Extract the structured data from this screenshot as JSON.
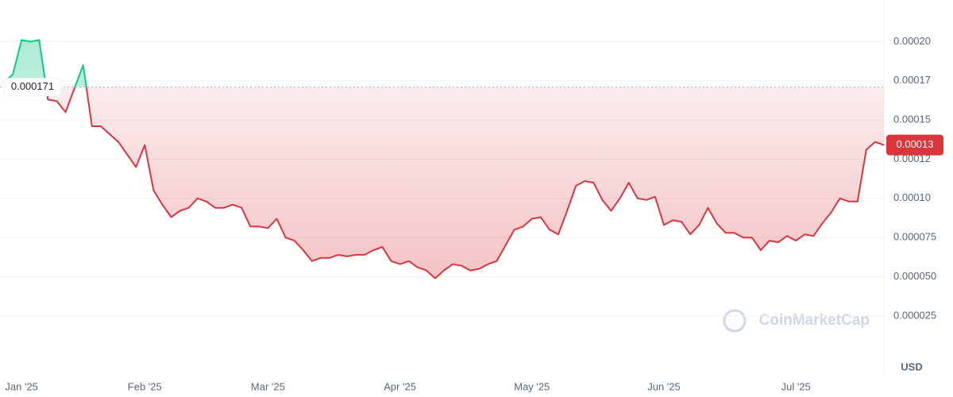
{
  "chart_data": {
    "type": "line",
    "currency": "USD",
    "watermark": "CoinMarketCap",
    "baseline": 0.000171,
    "last_price_label": "0.00013",
    "ylim": [
      -9e-06,
      0.000224
    ],
    "yticks": [
      2.5e-05,
      {
        "value": 5e-05,
        "label": "0.000050"
      },
      7.5e-05,
      {
        "value": 0.0001,
        "label": "0.00010"
      },
      {
        "value": 0.000125,
        "label": "0.00012"
      },
      0.00015,
      {
        "value": 0.000175,
        "label": "0.00017"
      },
      {
        "value": 0.0002,
        "label": "0.00020"
      }
    ],
    "grid": true,
    "up_color": "#16c784",
    "down_color": "#d9363e",
    "categories": [
      null,
      null,
      "Jan '25",
      null,
      null,
      null,
      null,
      null,
      null,
      null,
      null,
      null,
      null,
      null,
      null,
      null,
      "Feb '25",
      null,
      null,
      null,
      null,
      null,
      null,
      null,
      null,
      null,
      null,
      null,
      null,
      null,
      "Mar '25",
      null,
      null,
      null,
      null,
      null,
      null,
      null,
      null,
      null,
      null,
      null,
      null,
      null,
      null,
      "Apr '25",
      null,
      null,
      null,
      null,
      null,
      null,
      null,
      null,
      null,
      null,
      null,
      null,
      null,
      null,
      "May '25",
      null,
      null,
      null,
      null,
      null,
      null,
      null,
      null,
      null,
      null,
      null,
      null,
      null,
      null,
      "Jun '25",
      null,
      null,
      null,
      null,
      null,
      null,
      null,
      null,
      null,
      null,
      null,
      null,
      null,
      null,
      "Jul '25",
      null,
      null,
      null,
      null,
      null,
      null,
      null,
      null,
      null,
      null
    ],
    "values": [
      0.000174,
      0.000179,
      0.000201,
      0.0002,
      0.000201,
      0.000163,
      0.000162,
      0.000155,
      0.00017,
      0.000185,
      0.000146,
      0.000146,
      0.000141,
      0.000136,
      0.000128,
      0.00012,
      0.000134,
      0.000105,
      9.6e-05,
      8.8e-05,
      9.2e-05,
      9.4e-05,
      0.0001,
      9.8e-05,
      9.4e-05,
      9.4e-05,
      9.6e-05,
      9.4e-05,
      8.2e-05,
      8.2e-05,
      8.1e-05,
      8.7e-05,
      7.5e-05,
      7.3e-05,
      6.7e-05,
      6e-05,
      6.2e-05,
      6.2e-05,
      6.4e-05,
      6.3e-05,
      6.4e-05,
      6.4e-05,
      6.7e-05,
      6.9e-05,
      6e-05,
      5.8e-05,
      6e-05,
      5.6e-05,
      5.4e-05,
      4.9e-05,
      5.4e-05,
      5.8e-05,
      5.7e-05,
      5.4e-05,
      5.5e-05,
      5.8e-05,
      6e-05,
      7e-05,
      8e-05,
      8.2e-05,
      8.7e-05,
      8.8e-05,
      8e-05,
      7.7e-05,
      9.2e-05,
      0.000108,
      0.000111,
      0.00011,
      9.9e-05,
      9.2e-05,
      0.0001,
      0.00011,
      0.0001,
      9.9e-05,
      0.000101,
      8.3e-05,
      8.6e-05,
      8.5e-05,
      7.7e-05,
      8.3e-05,
      9.4e-05,
      8.4e-05,
      7.8e-05,
      7.8e-05,
      7.5e-05,
      7.5e-05,
      6.7e-05,
      7.3e-05,
      7.2e-05,
      7.6e-05,
      7.3e-05,
      7.7e-05,
      7.6e-05,
      8.4e-05,
      9.1e-05,
      0.0001,
      9.8e-05,
      9.8e-05,
      0.000131,
      0.000136,
      0.000134
    ]
  }
}
